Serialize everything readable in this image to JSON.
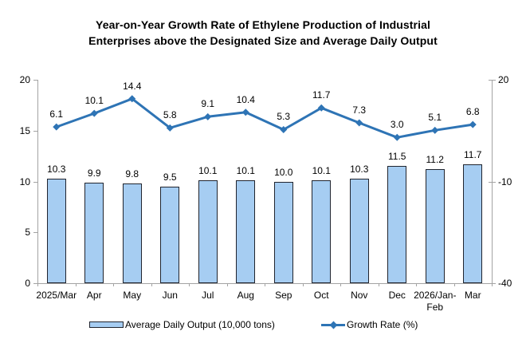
{
  "title_lines": [
    "Year-on-Year Growth Rate of Ethylene Production of Industrial",
    "Enterprises above the Designated Size and Average Daily Output"
  ],
  "colors": {
    "bar_fill": "#a6cdf2",
    "bar_border": "#20242e",
    "line": "#2e74b5",
    "axis": "#a3a3a3",
    "text": "#000000"
  },
  "chart_data": {
    "type": "bar+line",
    "title": "Year-on-Year Growth Rate of Ethylene Production of Industrial Enterprises above the Designated Size and Average Daily Output",
    "categories": [
      "2025/Mar",
      "Apr",
      "May",
      "Jun",
      "Jul",
      "Aug",
      "Sep",
      "Oct",
      "Nov",
      "Dec",
      "2026/Jan-\nFeb",
      "Mar"
    ],
    "series": [
      {
        "name": "Average Daily Output (10,000 tons)",
        "type": "bar",
        "axis": "left",
        "values": [
          10.3,
          9.9,
          9.8,
          9.5,
          10.1,
          10.1,
          10.0,
          10.1,
          10.3,
          11.5,
          11.2,
          11.7
        ]
      },
      {
        "name": "Growth Rate (%)",
        "type": "line",
        "axis": "right",
        "values": [
          6.1,
          10.1,
          14.4,
          5.8,
          9.1,
          10.4,
          5.3,
          11.7,
          7.3,
          3.0,
          5.1,
          6.8
        ]
      }
    ],
    "left_axis": {
      "min": 0,
      "max": 20,
      "ticks": [
        0,
        5,
        10,
        15,
        20
      ]
    },
    "right_axis": {
      "min": -40,
      "max": 20,
      "ticks": [
        -40,
        -10,
        20
      ]
    },
    "legend_position": "bottom",
    "grid": false
  }
}
